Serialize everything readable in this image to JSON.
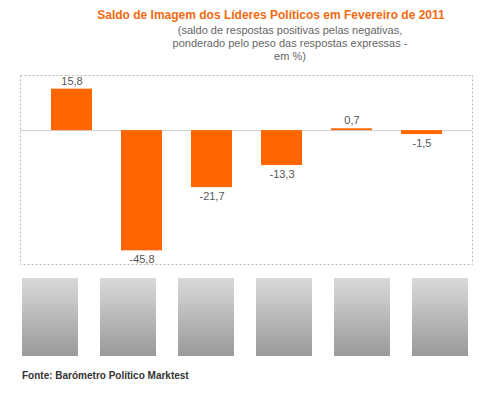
{
  "chart_data": {
    "type": "bar",
    "title": "Saldo de Imagem dos Líderes Políticos em Fevereiro de 2011",
    "subtitle": "(saldo de respostas positivas pelas negativas, ponderado pelo peso das respostas expressas - em %)",
    "caption": "Fonte: Barómetro Político Marktest",
    "categories": [
      null,
      null,
      null,
      null,
      null,
      null
    ],
    "values": [
      15.8,
      -45.8,
      -21.7,
      -13.3,
      0.7,
      -1.5
    ],
    "value_labels": [
      "15,8",
      "-45,8",
      "-21,7",
      "-13,3",
      "0,7",
      "-1,5"
    ],
    "color": "#ff6600",
    "ylim": [
      -51,
      21
    ],
    "yticks": [
      0
    ],
    "tick_labels": false,
    "data_labels": true,
    "grid": false
  }
}
